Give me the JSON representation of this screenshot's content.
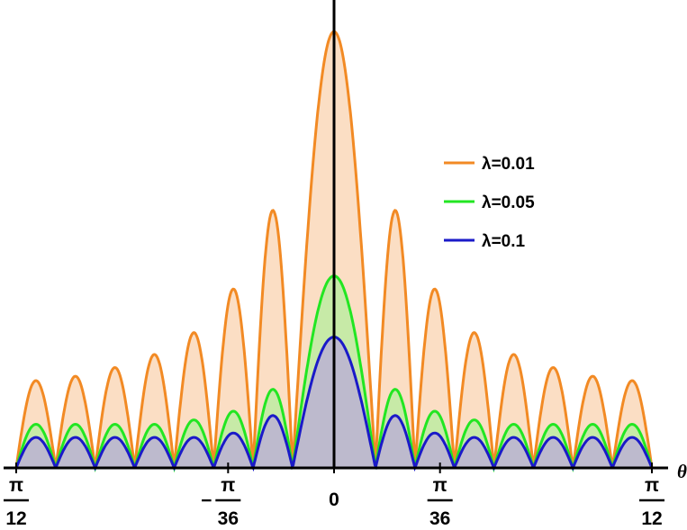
{
  "chart_data": {
    "type": "line",
    "xlabel": "θ",
    "ylabel": "",
    "xlim": [
      -0.2618,
      0.2618
    ],
    "grid": false,
    "legend_placement": "right",
    "filled": true,
    "x_ticks": [
      {
        "value": -0.2618,
        "sign": "−",
        "numerator": "π",
        "denominator": "12"
      },
      {
        "value": -0.08727,
        "sign": "−",
        "numerator": "π",
        "denominator": "36"
      },
      {
        "value": 0,
        "sign": "",
        "numerator": "",
        "denominator": "",
        "plain": "0"
      },
      {
        "value": 0.08727,
        "sign": "",
        "numerator": "π",
        "denominator": "36"
      },
      {
        "value": 0.2618,
        "sign": "",
        "numerator": "π",
        "denominator": "12"
      }
    ],
    "series": [
      {
        "name": "λ=0.01",
        "color": "#F28A24",
        "fill": "#F9D3B0",
        "peak": 1.0,
        "floor": 0.0,
        "sidelobe_peaks": [
          0.59,
          0.41,
          0.31,
          0.26,
          0.23,
          0.21,
          0.2
        ]
      },
      {
        "name": "λ=0.05",
        "color": "#22E622",
        "fill": "#B6EE9E",
        "peak": 0.44,
        "floor": 0.0,
        "sidelobe_peaks": [
          0.18,
          0.13,
          0.11,
          0.1,
          0.1,
          0.1,
          0.1
        ]
      },
      {
        "name": "λ=0.1",
        "color": "#1A1AC8",
        "fill": "#B9A9D9",
        "peak": 0.3,
        "floor": 0.0,
        "sidelobe_peaks": [
          0.12,
          0.08,
          0.07,
          0.07,
          0.07,
          0.07,
          0.07
        ]
      }
    ]
  }
}
